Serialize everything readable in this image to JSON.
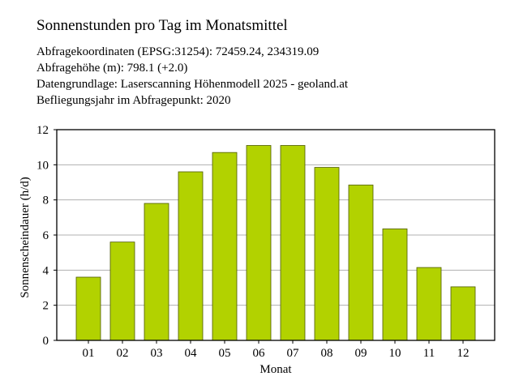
{
  "title": "Sonnenstunden pro Tag im Monatsmittel",
  "info_lines": [
    "Abfragekoordinaten (EPSG:31254): 72459.24, 234319.09",
    "Abfragehöhe (m): 798.1 (+2.0)",
    "Datengrundlage: Laserscanning Höhenmodell 2025 - geoland.at",
    "Befliegungsjahr im Abfragepunkt: 2020"
  ],
  "colors": {
    "bar_fill": "#b2d200",
    "bar_stroke": "#4d5a00",
    "grid": "#b0b0b0",
    "axis": "#000000"
  },
  "chart_data": {
    "type": "bar",
    "title": "",
    "xlabel": "Monat",
    "ylabel": "Sonnenscheindauer (h/d)",
    "categories": [
      "01",
      "02",
      "03",
      "04",
      "05",
      "06",
      "07",
      "08",
      "09",
      "10",
      "11",
      "12"
    ],
    "values": [
      3.6,
      5.6,
      7.8,
      9.6,
      10.7,
      11.1,
      11.1,
      9.85,
      8.85,
      6.35,
      4.15,
      3.05
    ],
    "ylim": [
      0,
      12
    ],
    "yticks": [
      "0",
      "2",
      "4",
      "6",
      "8",
      "10",
      "12"
    ],
    "grid": true,
    "legend": "none"
  }
}
